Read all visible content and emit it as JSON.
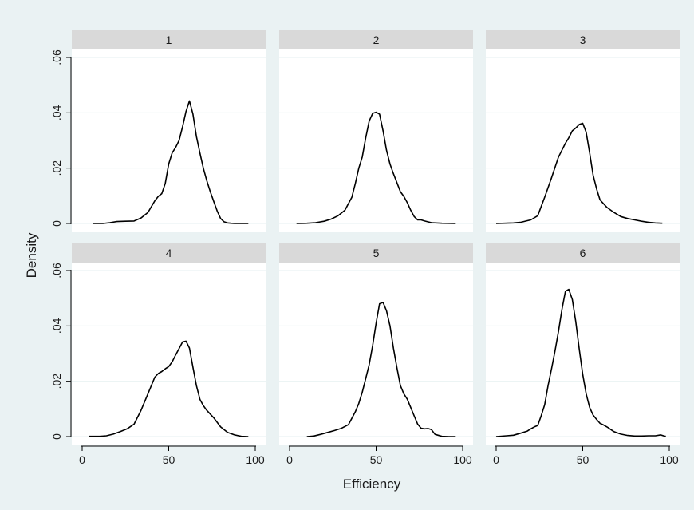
{
  "colors": {
    "background": "#eaf2f3",
    "panel": "#ffffff",
    "strip": "#d9d9d9",
    "grid": "#eaf2f3",
    "line": "#000000",
    "axis": "#000000"
  },
  "chart_data": {
    "type": "line",
    "title": "",
    "xlabel": "Efficiency",
    "ylabel": "Density",
    "xlim": [
      0,
      100
    ],
    "ylim": [
      0,
      0.06
    ],
    "x_ticks": [
      0,
      50,
      100
    ],
    "x_tick_labels": [
      "0",
      "50",
      "100"
    ],
    "y_ticks": [
      0,
      0.02,
      0.04,
      0.06
    ],
    "y_tick_labels": [
      "0",
      ".02",
      ".04",
      ".06"
    ],
    "grid": "horizontal",
    "layout": "2 rows x 3 columns, shared axes",
    "panels": [
      {
        "label": "1",
        "x": [
          6,
          12,
          16,
          20,
          25,
          30,
          34,
          38,
          42,
          44,
          46,
          48,
          50,
          52,
          54,
          56,
          58,
          60,
          62,
          64,
          66,
          68,
          70,
          72,
          74,
          76,
          78,
          80,
          82,
          84,
          86,
          88,
          92,
          96
        ],
        "y": [
          0,
          0,
          0.0003,
          0.0007,
          0.0008,
          0.0009,
          0.002,
          0.004,
          0.0082,
          0.0098,
          0.0108,
          0.0145,
          0.0215,
          0.0255,
          0.0275,
          0.03,
          0.035,
          0.0405,
          0.0443,
          0.0395,
          0.0315,
          0.0255,
          0.02,
          0.0155,
          0.0115,
          0.008,
          0.0045,
          0.0018,
          0.0006,
          0.0002,
          0.0001,
          0,
          0,
          0
        ]
      },
      {
        "label": "2",
        "x": [
          4,
          10,
          15,
          20,
          24,
          28,
          32,
          36,
          38,
          40,
          42,
          44,
          46,
          48,
          50,
          52,
          54,
          56,
          58,
          60,
          62,
          64,
          66,
          68,
          70,
          72,
          74,
          76,
          78,
          82,
          88,
          96
        ],
        "y": [
          0,
          0.0001,
          0.0003,
          0.0008,
          0.0016,
          0.0028,
          0.0048,
          0.0095,
          0.0145,
          0.02,
          0.024,
          0.031,
          0.037,
          0.0398,
          0.0402,
          0.0395,
          0.0335,
          0.0265,
          0.0215,
          0.018,
          0.0148,
          0.0115,
          0.0098,
          0.0075,
          0.0048,
          0.0025,
          0.0013,
          0.0013,
          0.0009,
          0.0003,
          0.0001,
          0
        ]
      },
      {
        "label": "3",
        "x": [
          0,
          10,
          14,
          18,
          20,
          24,
          28,
          32,
          36,
          40,
          42,
          44,
          46,
          48,
          50,
          52,
          54,
          56,
          58,
          60,
          64,
          68,
          72,
          76,
          80,
          84,
          88,
          92,
          96
        ],
        "y": [
          0,
          0.0002,
          0.0004,
          0.001,
          0.0013,
          0.0028,
          0.0095,
          0.0165,
          0.024,
          0.029,
          0.031,
          0.0335,
          0.0345,
          0.0358,
          0.0362,
          0.033,
          0.0255,
          0.0175,
          0.0125,
          0.0085,
          0.0058,
          0.004,
          0.0025,
          0.0018,
          0.0013,
          0.0008,
          0.0004,
          0.0002,
          0.0001
        ]
      },
      {
        "label": "4",
        "x": [
          4,
          10,
          14,
          18,
          22,
          26,
          30,
          34,
          38,
          42,
          44,
          46,
          48,
          50,
          52,
          54,
          56,
          58,
          60,
          62,
          64,
          66,
          68,
          70,
          72,
          76,
          80,
          84,
          88,
          92,
          96
        ],
        "y": [
          0.0001,
          0.0001,
          0.0003,
          0.0009,
          0.0018,
          0.0028,
          0.0045,
          0.0095,
          0.0155,
          0.0215,
          0.0228,
          0.0235,
          0.0245,
          0.0253,
          0.027,
          0.0295,
          0.0318,
          0.0342,
          0.0345,
          0.032,
          0.025,
          0.0185,
          0.0135,
          0.0112,
          0.0095,
          0.0068,
          0.0035,
          0.0015,
          0.0006,
          0.0001,
          0
        ]
      },
      {
        "label": "5",
        "x": [
          10,
          14,
          18,
          22,
          26,
          30,
          34,
          38,
          40,
          42,
          44,
          46,
          48,
          50,
          52,
          54,
          56,
          58,
          60,
          62,
          64,
          66,
          68,
          70,
          72,
          74,
          76,
          78,
          80,
          82,
          84,
          88,
          92,
          96
        ],
        "y": [
          0,
          0.0002,
          0.0008,
          0.0015,
          0.0022,
          0.003,
          0.0043,
          0.009,
          0.012,
          0.016,
          0.021,
          0.026,
          0.033,
          0.041,
          0.048,
          0.0485,
          0.0455,
          0.04,
          0.032,
          0.025,
          0.0185,
          0.0155,
          0.0135,
          0.0105,
          0.0075,
          0.0045,
          0.003,
          0.0028,
          0.0029,
          0.0025,
          0.0008,
          0.0001,
          0,
          0
        ]
      },
      {
        "label": "6",
        "x": [
          0,
          6,
          10,
          14,
          18,
          20,
          22,
          24,
          26,
          28,
          30,
          32,
          34,
          36,
          38,
          40,
          42,
          44,
          46,
          48,
          50,
          52,
          54,
          56,
          58,
          60,
          62,
          64,
          68,
          72,
          76,
          80,
          84,
          88,
          92,
          95,
          97,
          98
        ],
        "y": [
          0,
          0.0003,
          0.0005,
          0.0012,
          0.002,
          0.0028,
          0.0035,
          0.004,
          0.0075,
          0.0115,
          0.0185,
          0.0245,
          0.031,
          0.038,
          0.046,
          0.0525,
          0.0532,
          0.0495,
          0.0415,
          0.0315,
          0.0225,
          0.0155,
          0.0105,
          0.0078,
          0.0062,
          0.0048,
          0.0042,
          0.0035,
          0.0018,
          0.0009,
          0.0004,
          0.0002,
          0.0002,
          0.0003,
          0.0003,
          0.0006,
          0.0002,
          0.0001
        ]
      }
    ]
  }
}
